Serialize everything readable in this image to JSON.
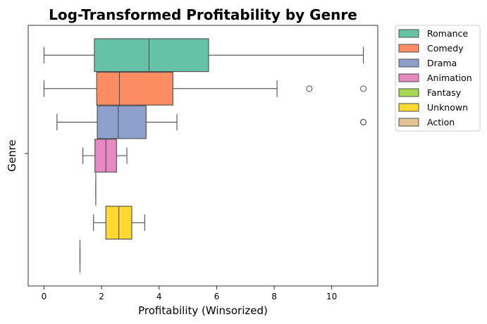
{
  "chart_data": {
    "type": "boxplot",
    "title": "Log-Transformed Profitability by Genre",
    "xlabel": "Profitability (Winsorized)",
    "ylabel": "Genre",
    "xlim": [
      -0.55,
      11.6
    ],
    "xticks": [
      0,
      2,
      4,
      6,
      8,
      10
    ],
    "y_tick_labels": [
      ""
    ],
    "grid": false,
    "legend_placement": "outside-top-right",
    "series": [
      {
        "name": "Romance",
        "color": "#66c2a5",
        "whisker_low": 0.0,
        "q1": 1.75,
        "median": 3.65,
        "q3": 5.72,
        "whisker_high": 11.1,
        "outliers": []
      },
      {
        "name": "Comedy",
        "color": "#fc8d62",
        "whisker_low": 0.0,
        "q1": 1.83,
        "median": 2.62,
        "q3": 4.48,
        "whisker_high": 8.1,
        "outliers": [
          9.22,
          11.1
        ]
      },
      {
        "name": "Drama",
        "color": "#8da0cb",
        "whisker_low": 0.45,
        "q1": 1.85,
        "median": 2.58,
        "q3": 3.55,
        "whisker_high": 4.62,
        "outliers": [
          11.1,
          11.1
        ]
      },
      {
        "name": "Animation",
        "color": "#e78ac3",
        "whisker_low": 1.35,
        "q1": 1.77,
        "median": 2.15,
        "q3": 2.52,
        "whisker_high": 2.88,
        "outliers": []
      },
      {
        "name": "Fantasy",
        "color": "#a6d854",
        "whisker_low": 1.8,
        "q1": 1.8,
        "median": 1.8,
        "q3": 1.8,
        "whisker_high": 1.8,
        "outliers": []
      },
      {
        "name": "Unknown",
        "color": "#ffd92f",
        "whisker_low": 1.72,
        "q1": 2.15,
        "median": 2.6,
        "q3": 3.05,
        "whisker_high": 3.5,
        "outliers": []
      },
      {
        "name": "Action",
        "color": "#e5c494",
        "whisker_low": 1.25,
        "q1": 1.25,
        "median": 1.25,
        "q3": 1.25,
        "whisker_high": 1.25,
        "outliers": []
      }
    ]
  }
}
